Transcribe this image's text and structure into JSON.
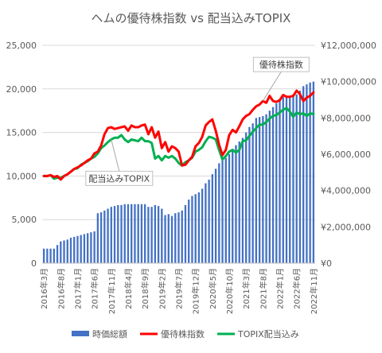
{
  "chart_data": {
    "type": "bar+line",
    "title": "ヘムの優待株指数 vs 配当込みTOPIX",
    "left_axis": {
      "min": 0,
      "max": 25000,
      "ticks": [
        "0",
        "5,000",
        "10,000",
        "15,000",
        "20,000",
        "25,000"
      ]
    },
    "right_axis": {
      "min": 0,
      "max": 12000000,
      "ticks": [
        "¥0",
        "¥2,000,000",
        "¥4,000,000",
        "¥6,000,000",
        "¥8,000,000",
        "¥10,000,000",
        "¥12,000,000"
      ]
    },
    "x_tick_labels": [
      "2016年3月",
      "2016年8月",
      "2017年1月",
      "2017年6月",
      "2017年11月",
      "2018年4月",
      "2018年9月",
      "2019年2月",
      "2019年7月",
      "2019年12月",
      "2020年5月",
      "2020年10月",
      "2021年3月",
      "2021年8月",
      "2022年1月",
      "2022年6月",
      "2022年11月"
    ],
    "months_start": "2016-03",
    "months_end": "2022-11",
    "series": [
      {
        "name": "時価総額",
        "type": "bar",
        "axis": "right",
        "color": "#4472C4",
        "values": [
          800000,
          800000,
          800000,
          800000,
          1000000,
          1200000,
          1250000,
          1300000,
          1400000,
          1450000,
          1500000,
          1550000,
          1600000,
          1650000,
          1700000,
          1750000,
          2750000,
          2800000,
          2900000,
          3000000,
          3100000,
          3150000,
          3200000,
          3200000,
          3250000,
          3250000,
          3250000,
          3250000,
          3250000,
          3250000,
          3250000,
          3100000,
          3100000,
          3200000,
          3150000,
          3000000,
          2650000,
          2700000,
          2600000,
          2750000,
          2800000,
          2900000,
          3200000,
          3500000,
          3700000,
          3800000,
          3900000,
          4100000,
          4400000,
          4600000,
          4900000,
          5200000,
          5500000,
          5650000,
          5800000,
          6000000,
          6250000,
          6500000,
          6700000,
          6900000,
          7200000,
          7500000,
          7700000,
          8000000,
          8050000,
          8100000,
          8200000,
          8400000,
          8600000,
          8800000,
          9000000,
          9150000,
          9150000,
          9200000,
          9200000,
          9300000,
          9500000,
          9750000,
          9850000,
          9950000,
          10000000
        ]
      },
      {
        "name": "優待株指数",
        "type": "line",
        "axis": "left",
        "color": "#FF0000",
        "values": [
          10000,
          10000,
          10100,
          9900,
          10000,
          9600,
          10000,
          10200,
          10500,
          10800,
          11000,
          11200,
          11500,
          11800,
          12000,
          12600,
          12800,
          13500,
          14800,
          15500,
          15600,
          15400,
          15500,
          15600,
          15700,
          15200,
          15800,
          15600,
          15600,
          15800,
          15900,
          14800,
          15600,
          14400,
          15100,
          13200,
          13900,
          12800,
          13400,
          13200,
          12800,
          11200,
          11300,
          11800,
          12200,
          13400,
          13800,
          14500,
          15800,
          16200,
          16500,
          15200,
          13600,
          12400,
          13000,
          14700,
          15300,
          15000,
          15700,
          16500,
          16900,
          17100,
          17600,
          18000,
          18200,
          18600,
          18400,
          19200,
          18600,
          18500,
          18700,
          19300,
          19100,
          19100,
          19200,
          19800,
          19400,
          18600,
          19000,
          19200,
          19600
        ]
      },
      {
        "name": "TOPIX配当込み",
        "type": "line",
        "axis": "left",
        "color": "#00B050",
        "values": [
          10000,
          10000,
          10100,
          9700,
          9800,
          9800,
          10000,
          10200,
          10500,
          10800,
          10900,
          11300,
          11500,
          11700,
          12000,
          12200,
          12600,
          13200,
          13500,
          13900,
          14200,
          14400,
          14400,
          14700,
          14200,
          13900,
          14200,
          14100,
          14000,
          14400,
          14000,
          14000,
          13800,
          12000,
          12300,
          11800,
          12300,
          12100,
          12300,
          12000,
          11500,
          11200,
          11600,
          11800,
          12100,
          12800,
          13000,
          13300,
          14000,
          14500,
          14400,
          14200,
          13000,
          11900,
          12300,
          12800,
          13000,
          12700,
          13000,
          14000,
          14100,
          14600,
          15100,
          15500,
          15900,
          15900,
          16200,
          16600,
          16900,
          17000,
          17300,
          17600,
          17800,
          17400,
          16800,
          17300,
          17100,
          17200,
          16900,
          17200,
          17100
        ]
      }
    ],
    "annotations": [
      {
        "text": "優待株指数",
        "target_series": "優待株指数",
        "month": "2021-08"
      },
      {
        "text": "配当込みTOPIX",
        "target_series": "TOPIX配当込み",
        "month": "2017-11"
      }
    ],
    "legend": {
      "position": "bottom",
      "entries": [
        "時価総額",
        "優待株指数",
        "TOPIX配当込み"
      ]
    },
    "grid": true
  }
}
